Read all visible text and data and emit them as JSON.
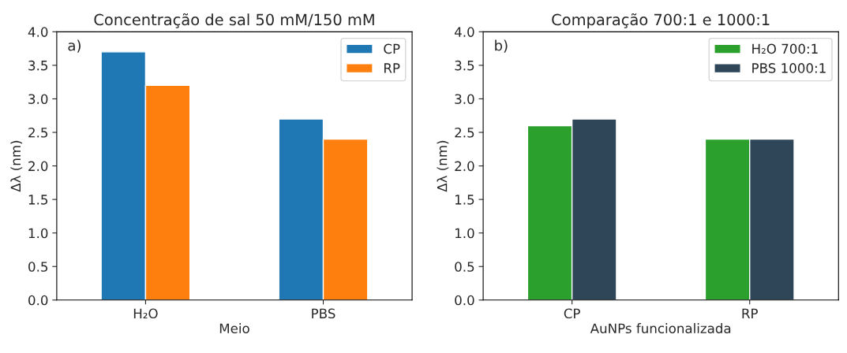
{
  "chart_data": [
    {
      "type": "bar",
      "title": "Concentração de sal 50 mM/150 mM",
      "xlabel": "Meio",
      "ylabel": "Δλ (nm)",
      "categories": [
        "H₂O",
        "PBS"
      ],
      "series": [
        {
          "name": "CP",
          "color": "#1f77b4",
          "values": [
            3.7,
            2.7
          ]
        },
        {
          "name": "RP",
          "color": "#ff7f0e",
          "values": [
            3.2,
            2.4
          ]
        }
      ],
      "ylim": [
        0,
        4
      ],
      "yticks": [
        {
          "value": 0,
          "label": "0.0"
        },
        0.5,
        {
          "value": 1,
          "label": "1.0"
        },
        1.5,
        {
          "value": 2,
          "label": "2.0"
        },
        2.5,
        {
          "value": 3,
          "label": "3.0"
        },
        3.5,
        {
          "value": 4,
          "label": "4.0"
        }
      ],
      "annotations": [
        "a)"
      ],
      "legend": "top right",
      "grid": false
    },
    {
      "type": "bar",
      "title": "Comparação 700:1 e 1000:1",
      "xlabel": "AuNPs funcionalizada",
      "ylabel": "Δλ (nm)",
      "categories": [
        "CP",
        "RP"
      ],
      "series": [
        {
          "name": "H₂O 700:1",
          "color": "#2ca02c",
          "values": [
            2.6,
            2.4
          ]
        },
        {
          "name": "PBS 1000:1",
          "color": "#2e4657",
          "values": [
            2.7,
            2.4
          ]
        }
      ],
      "ylim": [
        0,
        4
      ],
      "yticks": [
        {
          "value": 0,
          "label": "0.0"
        },
        0.5,
        {
          "value": 1,
          "label": "1.0"
        },
        1.5,
        {
          "value": 2,
          "label": "2.0"
        },
        2.5,
        {
          "value": 3,
          "label": "3.0"
        },
        3.5,
        {
          "value": 4,
          "label": "4.0"
        }
      ],
      "annotations": [
        "b)"
      ],
      "legend": "top right",
      "grid": false
    }
  ]
}
